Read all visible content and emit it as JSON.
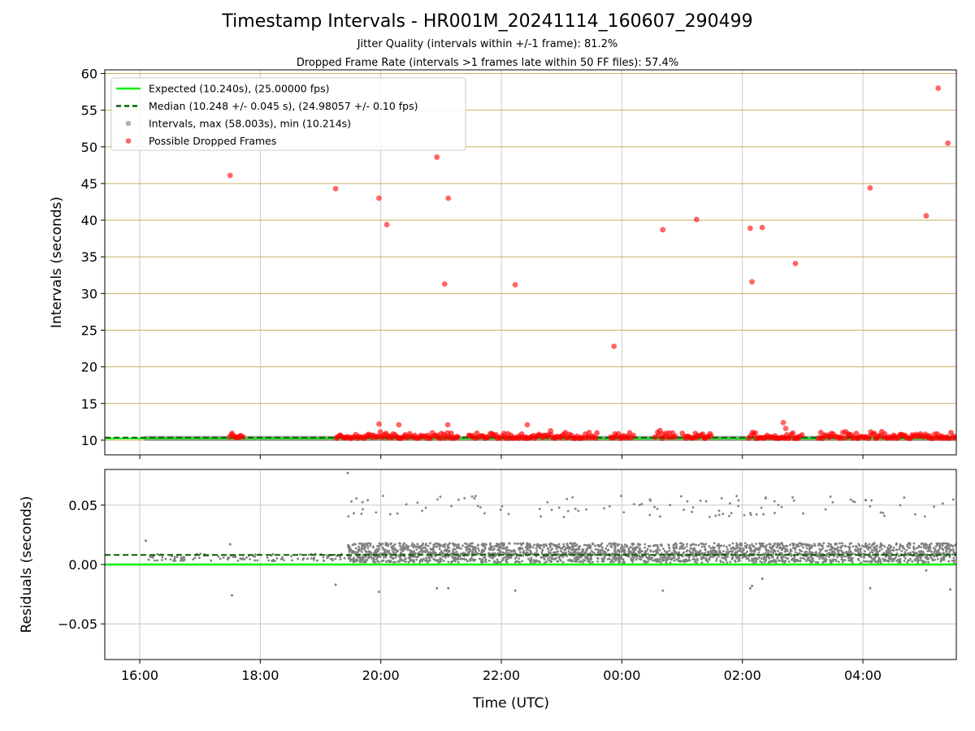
{
  "header": {
    "title": "Timestamp Intervals - HR001M_20241114_160607_290499",
    "subtitle1": "Jitter Quality (intervals within +/-1 frame): 81.2%",
    "subtitle2": "Dropped Frame Rate (intervals >1 frames late within 50 FF files): 57.4%"
  },
  "colors": {
    "expected": "#00ee00",
    "median": "#006400",
    "dropped": "#ff0000",
    "intervals": "#808080",
    "hgrid_top": "#c8b062",
    "grid": "#c8c8c8"
  },
  "chart_data": [
    {
      "type": "scatter",
      "panel": "intervals",
      "xlabel": "",
      "ylabel": "Intervals (seconds)",
      "x_unit": "hours since 16:00 UTC",
      "xlim": [
        -0.58,
        13.55
      ],
      "ylim": [
        8,
        60.5
      ],
      "yticks": [
        10,
        15,
        20,
        25,
        30,
        35,
        40,
        45,
        50,
        55,
        60
      ],
      "grid": true,
      "legend_position": "top-left",
      "legend": [
        "Expected (10.240s), (25.00000 fps)",
        "Median (10.248 +/- 0.045 s), (24.98057 +/- 0.10 fps)",
        "Intervals, max (58.003s), min (10.214s)",
        "Possible Dropped Frames"
      ],
      "expected_value": 10.24,
      "median_value": 10.248,
      "data_start": 0.1,
      "data_end": 13.55,
      "dropped_outliers": [
        {
          "x": 1.5,
          "y": 46.1
        },
        {
          "x": 3.25,
          "y": 44.3
        },
        {
          "x": 3.97,
          "y": 43.0
        },
        {
          "x": 4.1,
          "y": 39.4
        },
        {
          "x": 4.93,
          "y": 48.6
        },
        {
          "x": 5.06,
          "y": 31.3
        },
        {
          "x": 5.12,
          "y": 43.0
        },
        {
          "x": 6.23,
          "y": 31.2
        },
        {
          "x": 7.87,
          "y": 22.8
        },
        {
          "x": 8.68,
          "y": 38.7
        },
        {
          "x": 9.24,
          "y": 40.1
        },
        {
          "x": 10.13,
          "y": 38.9
        },
        {
          "x": 10.16,
          "y": 31.6
        },
        {
          "x": 10.33,
          "y": 39.0
        },
        {
          "x": 10.88,
          "y": 34.1
        },
        {
          "x": 12.12,
          "y": 44.4
        },
        {
          "x": 13.05,
          "y": 40.6
        },
        {
          "x": 13.25,
          "y": 58.0
        },
        {
          "x": 13.41,
          "y": 50.5
        },
        {
          "x": 3.97,
          "y": 12.2
        },
        {
          "x": 4.3,
          "y": 12.1
        },
        {
          "x": 5.11,
          "y": 12.1
        },
        {
          "x": 6.43,
          "y": 12.1
        },
        {
          "x": 10.68,
          "y": 12.4
        },
        {
          "x": 10.72,
          "y": 11.6
        }
      ],
      "dropped_ranges": [
        [
          1.48,
          1.72
        ],
        [
          3.25,
          5.3
        ],
        [
          5.45,
          7.6
        ],
        [
          7.8,
          8.2
        ],
        [
          8.55,
          8.9
        ],
        [
          9.0,
          9.5
        ],
        [
          10.1,
          11.0
        ],
        [
          11.25,
          13.55
        ]
      ]
    },
    {
      "type": "scatter",
      "panel": "residuals",
      "xlabel": "Time (UTC)",
      "ylabel": "Residuals (seconds)",
      "x_unit": "hours since 16:00 UTC",
      "xlim": [
        -0.58,
        13.55
      ],
      "ylim": [
        -0.08,
        0.08
      ],
      "yticks": [
        -0.05,
        0.0,
        0.05
      ],
      "ytick_labels": [
        "−0.05",
        "0.00",
        "0.05"
      ],
      "xticks": [
        0,
        2,
        4,
        6,
        8,
        10,
        12
      ],
      "xtick_labels": [
        "16:00",
        "18:00",
        "20:00",
        "22:00",
        "00:00",
        "02:00",
        "04:00"
      ],
      "grid": true,
      "expected_value": 0.0,
      "median_value": 0.008,
      "dense_start": 3.45,
      "dense_end": 13.55,
      "sparse_start": 0.1,
      "sparse_end": 3.45,
      "outliers": [
        {
          "x": 0.1,
          "y": 0.02
        },
        {
          "x": 1.53,
          "y": -0.026
        },
        {
          "x": 1.5,
          "y": 0.017
        },
        {
          "x": 3.25,
          "y": -0.017
        },
        {
          "x": 3.45,
          "y": 0.077
        },
        {
          "x": 3.97,
          "y": -0.023
        },
        {
          "x": 4.93,
          "y": -0.02
        },
        {
          "x": 5.12,
          "y": -0.02
        },
        {
          "x": 6.23,
          "y": -0.022
        },
        {
          "x": 8.68,
          "y": -0.022
        },
        {
          "x": 10.13,
          "y": -0.02
        },
        {
          "x": 10.16,
          "y": -0.018
        },
        {
          "x": 10.33,
          "y": -0.012
        },
        {
          "x": 12.12,
          "y": -0.02
        },
        {
          "x": 13.05,
          "y": -0.005
        },
        {
          "x": 13.45,
          "y": -0.021
        }
      ]
    }
  ]
}
